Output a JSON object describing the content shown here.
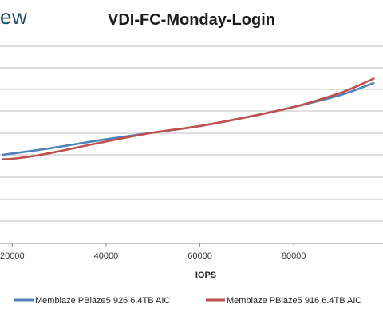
{
  "brand": {
    "partial_logo_text": "ew"
  },
  "chart_data": {
    "type": "line",
    "title": "VDI-FC-Monday-Login",
    "xlabel": "IOPS",
    "ylabel": "",
    "x_ticks": [
      20000,
      40000,
      60000,
      80000
    ],
    "x_tick_labels": [
      "20000",
      "40000",
      "60000",
      "80000"
    ],
    "grid": "horizontal",
    "legend_position": "bottom",
    "series": [
      {
        "name": "Memblaze PBlaze5 926 6.4TB AIC",
        "color": "#4f81bd",
        "x": [
          18000,
          20000,
          25000,
          30000,
          40000,
          50000,
          60000,
          70000,
          80000,
          90000,
          97000
        ],
        "y": [
          2.0,
          2.03,
          2.1,
          2.18,
          2.35,
          2.5,
          2.65,
          2.85,
          3.08,
          3.35,
          3.62
        ]
      },
      {
        "name": "Memblaze PBlaze5 916 6.4TB AIC",
        "color": "#c0504d",
        "x": [
          18000,
          20000,
          25000,
          30000,
          40000,
          50000,
          60000,
          70000,
          80000,
          90000,
          97000
        ],
        "y": [
          1.9,
          1.91,
          1.98,
          2.08,
          2.3,
          2.5,
          2.65,
          2.85,
          3.08,
          3.4,
          3.72
        ]
      }
    ]
  }
}
